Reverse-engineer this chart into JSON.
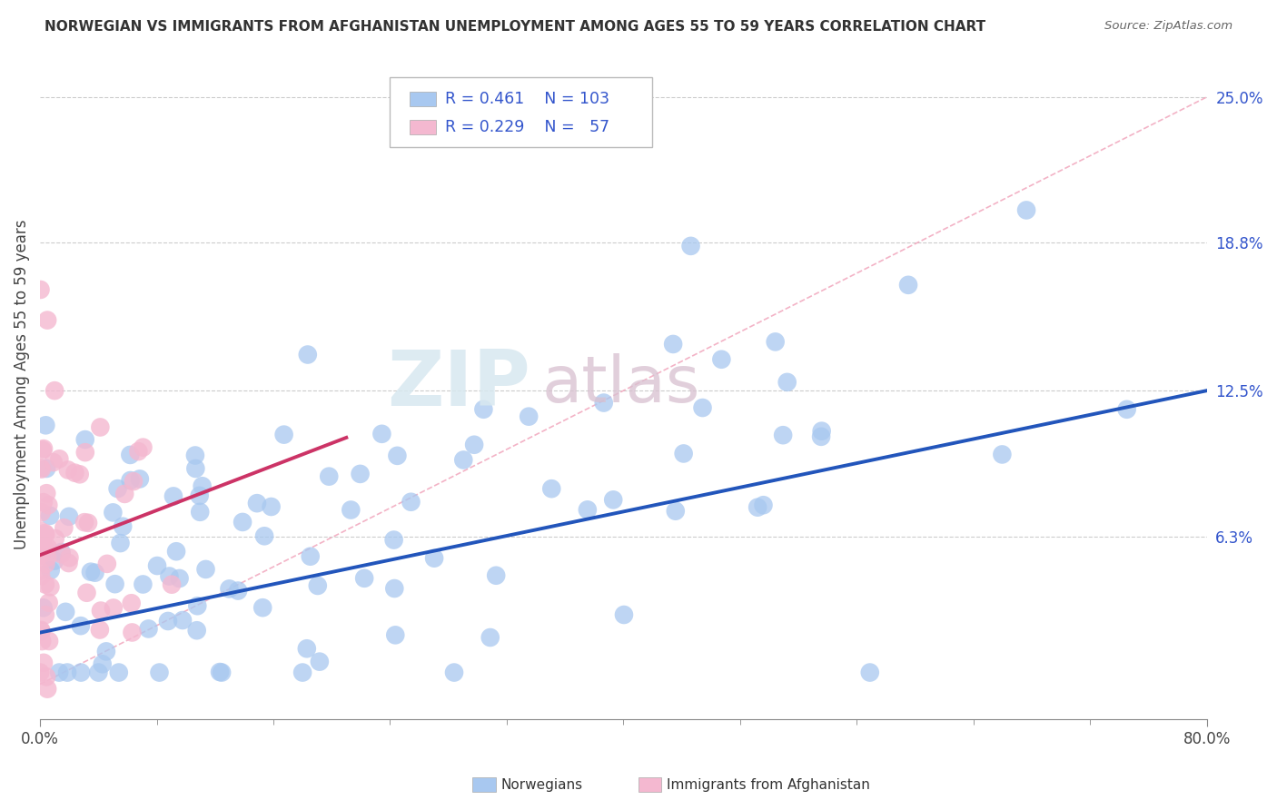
{
  "title": "NORWEGIAN VS IMMIGRANTS FROM AFGHANISTAN UNEMPLOYMENT AMONG AGES 55 TO 59 YEARS CORRELATION CHART",
  "source": "Source: ZipAtlas.com",
  "ylabel": "Unemployment Among Ages 55 to 59 years",
  "xlim": [
    0.0,
    0.8
  ],
  "ylim": [
    -0.015,
    0.27
  ],
  "y_tick_values_right": [
    0.063,
    0.125,
    0.188,
    0.25
  ],
  "y_tick_labels_right": [
    "6.3%",
    "12.5%",
    "18.8%",
    "25.0%"
  ],
  "grid_color": "#cccccc",
  "background_color": "#ffffff",
  "watermark_zip": "ZIP",
  "watermark_atlas": "atlas",
  "color_norwegian": "#a8c8f0",
  "color_afghan": "#f4b8d0",
  "color_norwegian_line": "#2255bb",
  "color_afghan_line": "#cc3366",
  "color_text_blue": "#3355cc",
  "color_ref_line": "#f0a0b8",
  "nor_line_x": [
    0.0,
    0.8
  ],
  "nor_line_y": [
    0.022,
    0.125
  ],
  "afg_line_x": [
    0.0,
    0.21
  ],
  "afg_line_y": [
    0.055,
    0.105
  ]
}
